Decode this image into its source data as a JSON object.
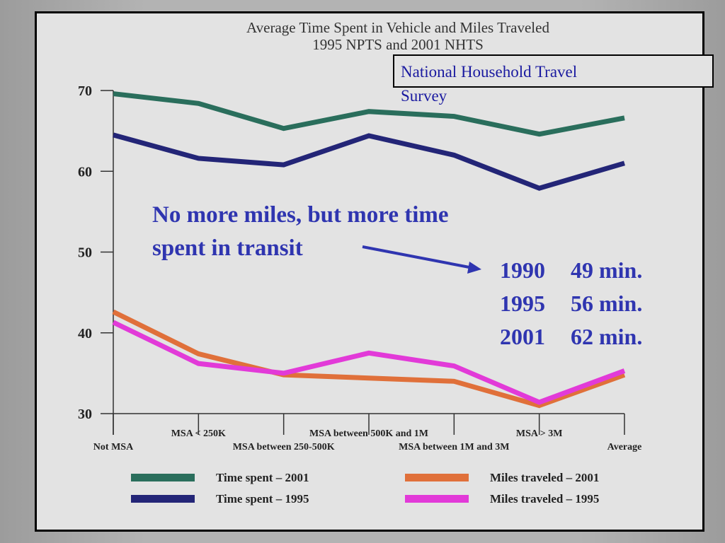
{
  "slide": {
    "title_line1": "Average Time Spent in Vehicle and Miles Traveled",
    "title_line2": "1995 NPTS and 2001 NHTS",
    "source_line1": "National Household Travel",
    "source_line2": "Survey",
    "annotation_line1": "No more miles, but more time",
    "annotation_line2": "spent in transit",
    "stats": [
      {
        "year": "1990",
        "value": "49 min."
      },
      {
        "year": "1995",
        "value": "56 min."
      },
      {
        "year": "2001",
        "value": "62 min."
      }
    ],
    "colors": {
      "annotation": "#2f35b0",
      "source": "#1a1aa0"
    }
  },
  "chart_data": {
    "type": "line",
    "title": "Average Time Spent in Vehicle and Miles Traveled",
    "subtitle": "1995 NPTS and 2001 NHTS",
    "categories": [
      "Not MSA",
      "MSA < 250K",
      "MSA between 250-500K",
      "MSA between 500K and 1M",
      "MSA between 1M and 3M",
      "MSA > 3M",
      "Average"
    ],
    "ylim": [
      30,
      70
    ],
    "yticks": [
      "70",
      "60",
      "50",
      "40",
      "30"
    ],
    "series": [
      {
        "name": "Time spent – 2001",
        "color": "#2a6e5c",
        "values": [
          69.6,
          68.4,
          65.3,
          67.4,
          66.8,
          64.6,
          66.6
        ]
      },
      {
        "name": "Time spent – 1995",
        "color": "#232577",
        "values": [
          64.5,
          61.6,
          60.8,
          64.4,
          62.0,
          57.9,
          61.0
        ]
      },
      {
        "name": "Miles traveled – 2001",
        "color": "#e0703a",
        "values": [
          42.6,
          37.4,
          34.8,
          34.4,
          34.0,
          31.0,
          34.8
        ]
      },
      {
        "name": "Miles traveled – 1995",
        "color": "#e23ad8",
        "values": [
          41.3,
          36.2,
          35.0,
          37.5,
          35.9,
          31.4,
          35.3
        ]
      }
    ]
  }
}
